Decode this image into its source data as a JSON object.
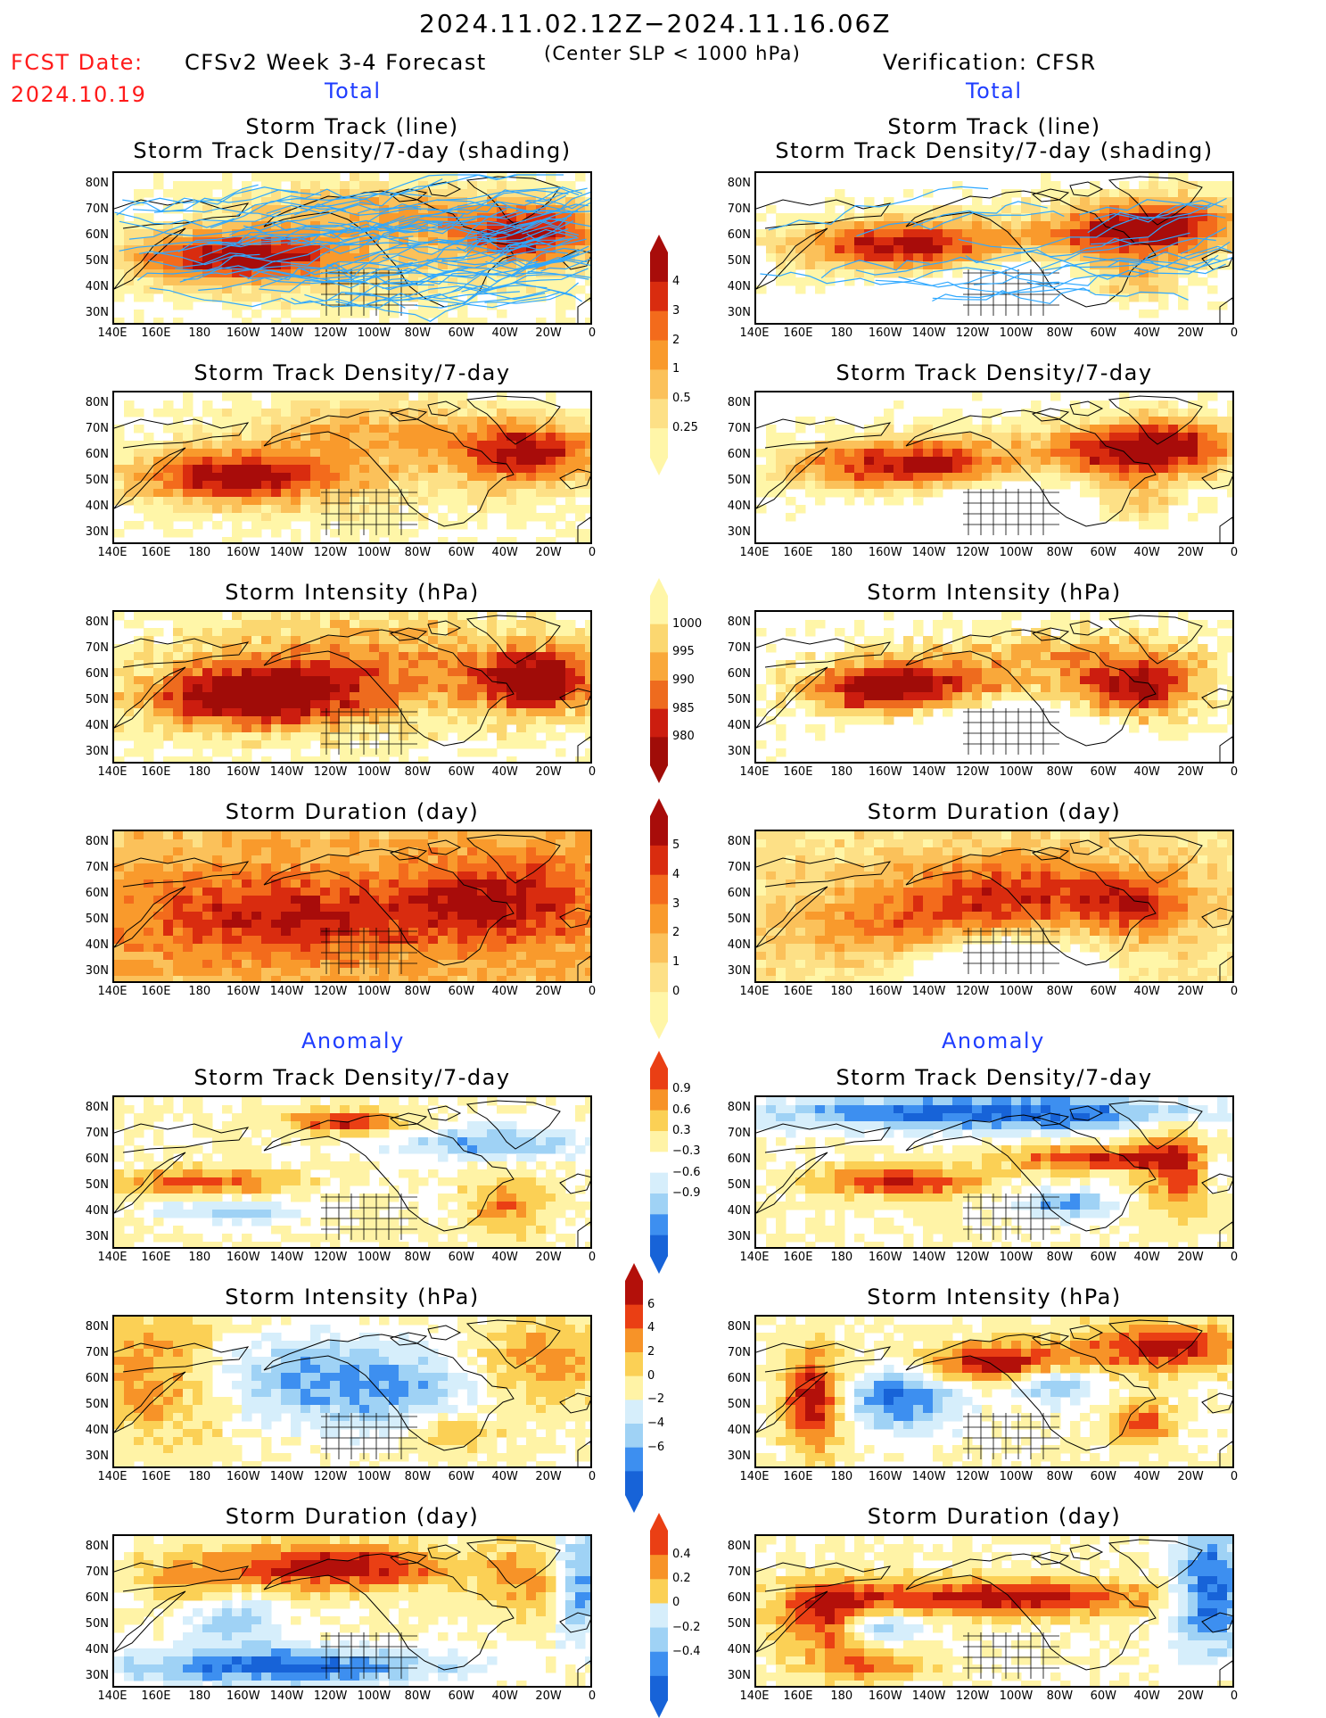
{
  "header": {
    "date_range": "2024.11.02.12Z−2024.11.16.06Z",
    "fcst_label": "FCST Date:",
    "fcst_date": "2024.10.19",
    "forecast_title": "CFSv2 Week 3-4 Forecast",
    "criterion": "(Center SLP < 1000 hPa)",
    "verification": "Verification: CFSR"
  },
  "sections": {
    "total_left": "Total",
    "total_right": "Total",
    "anomaly_left": "Anomaly",
    "anomaly_right": "Anomaly"
  },
  "panel_titles": {
    "track_line": "Storm Track (line)",
    "track_shading": "Storm Track Density/7-day (shading)",
    "density": "Storm Track Density/7-day",
    "intensity": "Storm Intensity (hPa)",
    "duration": "Storm Duration (day)"
  },
  "axes": {
    "lat_labels": [
      "80N",
      "70N",
      "60N",
      "50N",
      "40N",
      "30N"
    ],
    "lon_labels": [
      "140E",
      "160E",
      "180",
      "160W",
      "140W",
      "120W",
      "100W",
      "80W",
      "60W",
      "40W",
      "20W",
      "0"
    ]
  },
  "colorbars": {
    "density_total": [
      "4",
      "3",
      "2",
      "1",
      "0.5",
      "0.25"
    ],
    "intensity_total": [
      "1000",
      "995",
      "990",
      "985",
      "980"
    ],
    "duration_total": [
      "5",
      "4",
      "3",
      "2",
      "1",
      "0"
    ],
    "density_anom": [
      "0.9",
      "0.6",
      "0.3",
      "−0.3",
      "−0.6",
      "−0.9"
    ],
    "intensity_anom": [
      "6",
      "4",
      "2",
      "0",
      "−2",
      "−4",
      "−6"
    ],
    "duration_anom": [
      "0.4",
      "0.2",
      "0",
      "−0.2",
      "−0.4"
    ]
  },
  "colors": {
    "title_red": "#ff1a1a",
    "section_blue": "#1f3dff",
    "track_line": "#2fa8ff"
  }
}
